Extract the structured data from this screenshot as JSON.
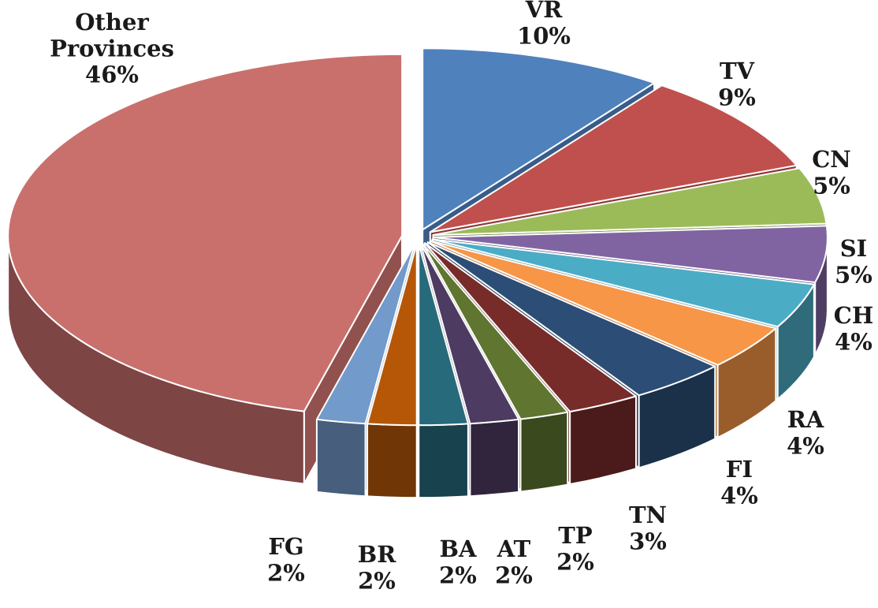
{
  "chart_data": {
    "type": "pie",
    "title": "",
    "slices": [
      {
        "label": "VR",
        "value": 10,
        "pct_label": "10%",
        "color": "#4F81BD"
      },
      {
        "label": "TV",
        "value": 9,
        "pct_label": "9%",
        "color": "#C0504D"
      },
      {
        "label": "CN",
        "value": 5,
        "pct_label": "5%",
        "color": "#9BBB59"
      },
      {
        "label": "SI",
        "value": 5,
        "pct_label": "5%",
        "color": "#8064A2"
      },
      {
        "label": "CH",
        "value": 4,
        "pct_label": "4%",
        "color": "#4BACC6"
      },
      {
        "label": "RA",
        "value": 4,
        "pct_label": "4%",
        "color": "#F79646"
      },
      {
        "label": "FI",
        "value": 4,
        "pct_label": "4%",
        "color": "#2C4D75"
      },
      {
        "label": "TN",
        "value": 3,
        "pct_label": "3%",
        "color": "#772C2A"
      },
      {
        "label": "TP",
        "value": 2,
        "pct_label": "2%",
        "color": "#5F7530"
      },
      {
        "label": "AT",
        "value": 2,
        "pct_label": "2%",
        "color": "#4D3B62"
      },
      {
        "label": "BA",
        "value": 2,
        "pct_label": "2%",
        "color": "#276A7C"
      },
      {
        "label": "BR",
        "value": 2,
        "pct_label": "2%",
        "color": "#B65708"
      },
      {
        "label": "FG",
        "value": 2,
        "pct_label": "2%",
        "color": "#729ACA"
      },
      {
        "label": "Other Provinces",
        "value": 46,
        "pct_label": "46%",
        "color": "#C9706D"
      }
    ]
  }
}
